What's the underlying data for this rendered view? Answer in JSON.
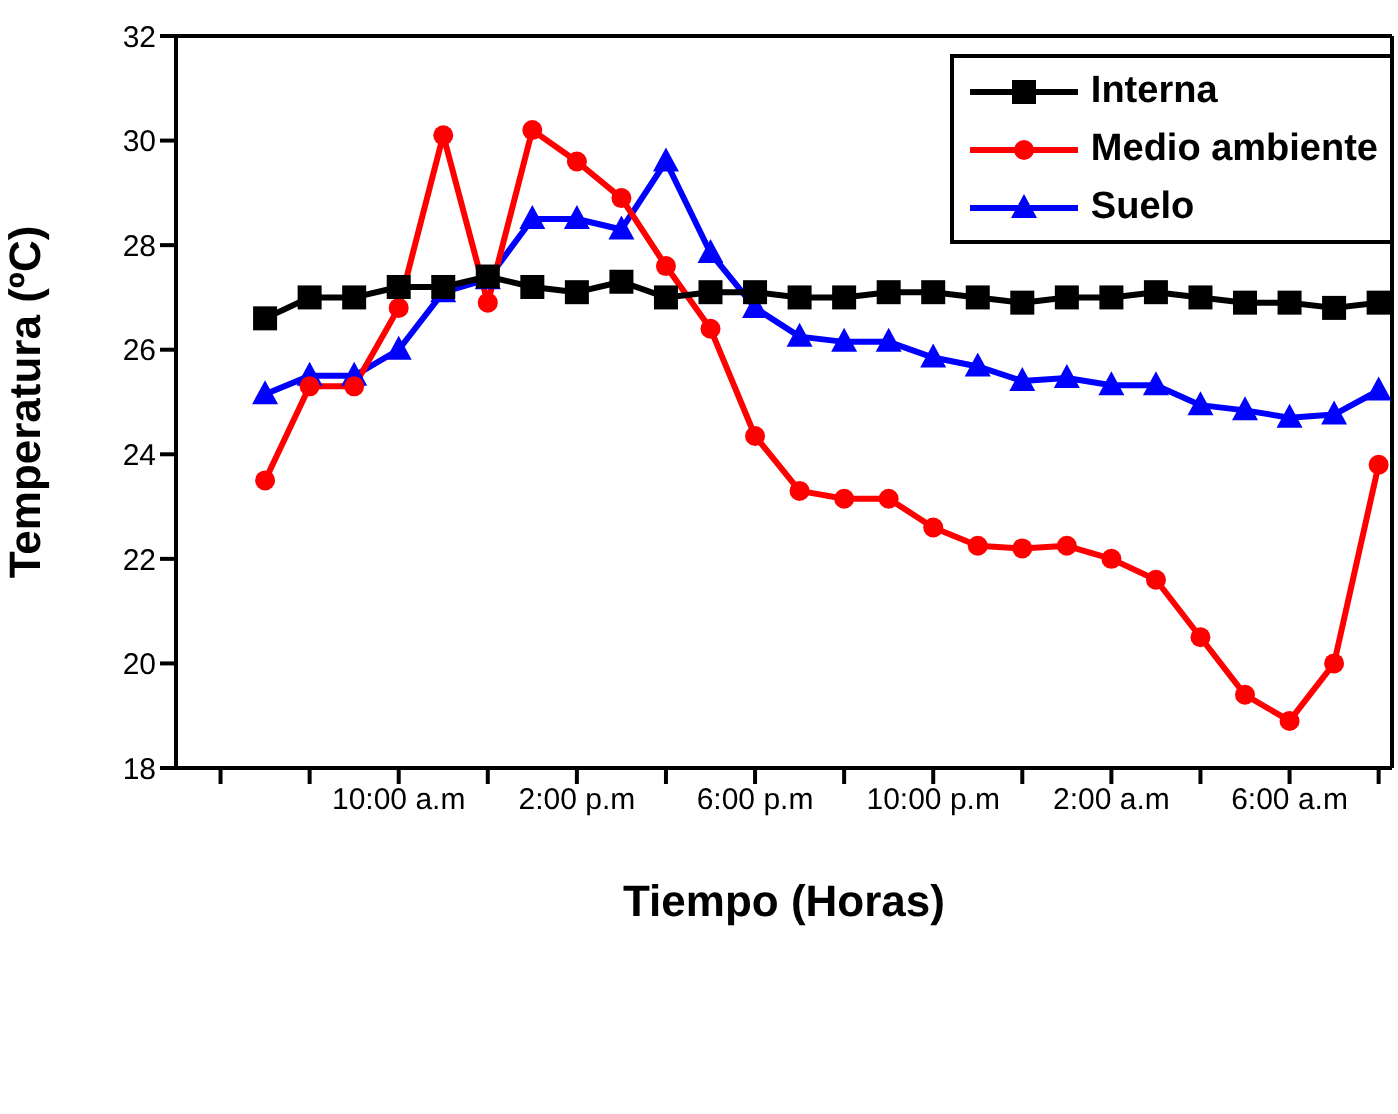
{
  "chart_data": {
    "type": "line",
    "xlabel": "Tiempo (Horas)",
    "ylabel": "Temperatura (ºC)",
    "categories": [
      null,
      null,
      null,
      "10:00 a.m",
      null,
      null,
      null,
      "2:00 p.m",
      null,
      null,
      null,
      "6:00 p.m",
      null,
      null,
      null,
      "10:00 p.m",
      null,
      null,
      null,
      "2:00 a.m",
      null,
      null,
      null,
      "6:00 a.m",
      null,
      null
    ],
    "ylim": [
      18,
      32
    ],
    "yticks": [
      18,
      20,
      22,
      24,
      26,
      28,
      30,
      32
    ],
    "grid": false,
    "legend": "top right",
    "line_style": "solid",
    "series": [
      {
        "name": "Interna",
        "color": "#000000",
        "marker": "square",
        "values": [
          26.6,
          27.0,
          27.0,
          27.2,
          27.2,
          27.4,
          27.2,
          27.1,
          27.3,
          27.0,
          27.1,
          27.1,
          27.0,
          27.0,
          27.1,
          27.1,
          27.0,
          26.9,
          27.0,
          27.0,
          27.1,
          27.0,
          26.9,
          26.9,
          26.8,
          26.9
        ]
      },
      {
        "name": "Medio ambiente",
        "color": "#ff0000",
        "marker": "circle",
        "values": [
          23.5,
          25.3,
          25.3,
          26.8,
          30.1,
          26.9,
          30.2,
          29.6,
          28.9,
          27.6,
          26.4,
          24.35,
          23.3,
          23.15,
          23.15,
          22.6,
          22.25,
          22.2,
          22.25,
          22.0,
          21.6,
          20.5,
          19.4,
          18.9,
          20.0,
          23.8
        ]
      },
      {
        "name": "Suelo",
        "color": "#0000ff",
        "marker": "triangle",
        "values": [
          25.15,
          25.5,
          25.5,
          26.0,
          27.1,
          27.35,
          28.5,
          28.5,
          28.3,
          29.6,
          27.85,
          26.8,
          26.25,
          26.15,
          26.15,
          25.85,
          25.68,
          25.4,
          25.46,
          25.32,
          25.32,
          24.94,
          24.84,
          24.7,
          24.76,
          25.22
        ]
      }
    ]
  }
}
